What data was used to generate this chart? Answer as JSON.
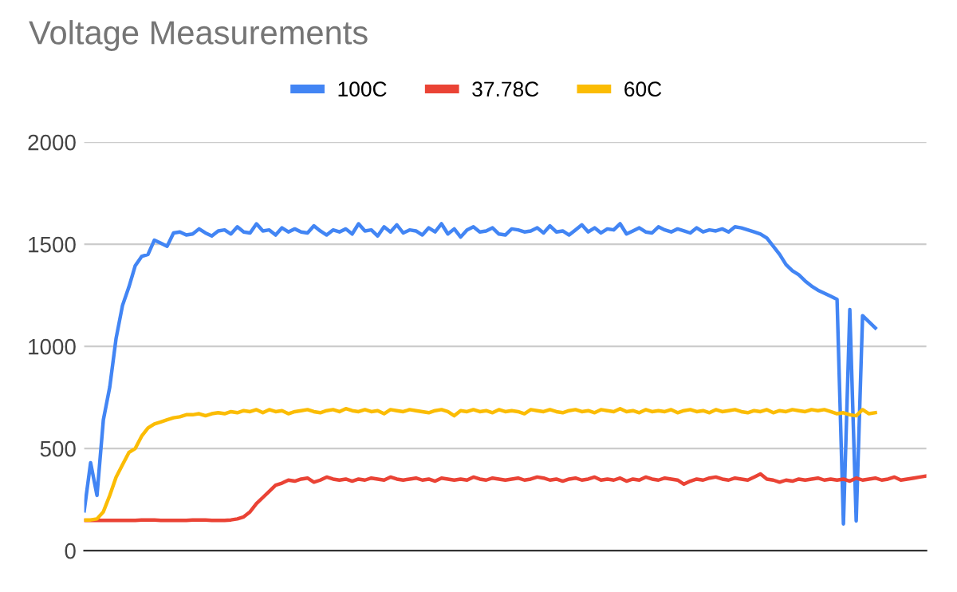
{
  "chart_data": {
    "type": "line",
    "title": "Voltage Measurements",
    "categories": [
      null,
      null,
      null,
      null,
      null,
      null,
      null,
      null,
      null,
      null,
      null,
      null,
      null,
      null,
      null,
      null,
      null,
      null,
      null,
      null,
      null,
      null,
      null,
      null,
      null,
      null,
      null,
      null,
      null,
      null,
      null,
      null,
      null,
      null,
      null,
      null,
      null,
      null,
      null,
      null,
      null,
      null,
      null,
      null,
      null,
      null,
      null,
      null,
      null,
      null,
      null,
      null,
      null,
      null,
      null,
      null,
      null,
      null,
      null,
      null,
      null,
      null,
      null,
      null,
      null,
      null,
      null,
      null,
      null,
      null,
      null,
      null,
      null,
      null,
      null,
      null,
      null,
      null,
      null,
      null,
      null,
      null,
      null,
      null,
      null,
      null,
      null,
      null,
      null,
      null,
      null,
      null,
      null,
      null,
      null,
      null,
      null,
      null,
      null,
      null,
      null,
      null,
      null,
      null,
      null,
      null,
      null,
      null,
      null,
      null,
      null,
      null,
      null,
      null,
      null,
      null,
      null,
      null,
      null,
      null,
      null,
      null,
      null,
      null,
      null,
      null,
      null,
      null,
      null,
      null,
      null,
      null,
      null
    ],
    "series": [
      {
        "name": "100C",
        "color": "#4285f4",
        "values": [
          195,
          430,
          270,
          640,
          800,
          1040,
          1200,
          1290,
          1395,
          1440,
          1450,
          1520,
          1505,
          1490,
          1555,
          1560,
          1545,
          1550,
          1575,
          1555,
          1540,
          1565,
          1570,
          1550,
          1585,
          1560,
          1555,
          1600,
          1565,
          1570,
          1545,
          1580,
          1560,
          1575,
          1560,
          1555,
          1590,
          1565,
          1545,
          1570,
          1560,
          1575,
          1550,
          1600,
          1565,
          1570,
          1540,
          1585,
          1560,
          1595,
          1555,
          1570,
          1565,
          1545,
          1580,
          1560,
          1600,
          1550,
          1575,
          1535,
          1570,
          1585,
          1560,
          1565,
          1580,
          1550,
          1545,
          1575,
          1570,
          1560,
          1565,
          1580,
          1555,
          1590,
          1560,
          1565,
          1545,
          1570,
          1595,
          1560,
          1580,
          1555,
          1575,
          1570,
          1600,
          1550,
          1565,
          1580,
          1560,
          1555,
          1585,
          1570,
          1560,
          1575,
          1565,
          1555,
          1580,
          1560,
          1570,
          1565,
          1575,
          1560,
          1585,
          1580,
          1570,
          1560,
          1550,
          1530,
          1490,
          1450,
          1400,
          1370,
          1350,
          1320,
          1295,
          1275,
          1260,
          1245,
          1230,
          130,
          1180,
          145,
          1150,
          1120,
          1090,
          null,
          null,
          null,
          null,
          null,
          null,
          null,
          null
        ]
      },
      {
        "name": "37.78C",
        "color": "#ea4335",
        "values": [
          148,
          148,
          148,
          148,
          148,
          148,
          148,
          148,
          148,
          150,
          150,
          150,
          148,
          148,
          148,
          148,
          148,
          150,
          150,
          150,
          148,
          148,
          148,
          150,
          155,
          165,
          190,
          230,
          260,
          290,
          320,
          330,
          345,
          340,
          350,
          355,
          335,
          345,
          360,
          350,
          345,
          350,
          340,
          350,
          345,
          355,
          350,
          345,
          360,
          350,
          345,
          350,
          355,
          345,
          350,
          340,
          355,
          350,
          345,
          350,
          345,
          360,
          350,
          345,
          355,
          350,
          345,
          350,
          355,
          345,
          350,
          360,
          355,
          345,
          350,
          340,
          350,
          355,
          345,
          350,
          360,
          345,
          350,
          345,
          355,
          340,
          350,
          345,
          360,
          350,
          345,
          355,
          350,
          345,
          325,
          340,
          350,
          345,
          355,
          360,
          350,
          345,
          355,
          350,
          345,
          360,
          375,
          350,
          345,
          335,
          345,
          340,
          350,
          345,
          350,
          355,
          345,
          350,
          345,
          350,
          340,
          355,
          345,
          350,
          355,
          345,
          350,
          360,
          345,
          350,
          355,
          360,
          365
        ]
      },
      {
        "name": "60C",
        "color": "#fbbc04",
        "values": [
          150,
          150,
          155,
          190,
          270,
          360,
          420,
          480,
          500,
          560,
          600,
          620,
          630,
          640,
          650,
          655,
          665,
          665,
          670,
          660,
          670,
          675,
          670,
          680,
          675,
          685,
          680,
          690,
          675,
          690,
          680,
          685,
          670,
          680,
          685,
          690,
          680,
          675,
          685,
          690,
          680,
          695,
          685,
          680,
          690,
          680,
          685,
          670,
          690,
          685,
          680,
          690,
          685,
          680,
          675,
          685,
          690,
          680,
          660,
          685,
          680,
          690,
          680,
          685,
          675,
          690,
          680,
          685,
          680,
          670,
          690,
          685,
          680,
          690,
          680,
          675,
          685,
          690,
          680,
          685,
          675,
          690,
          685,
          680,
          695,
          680,
          685,
          675,
          690,
          680,
          685,
          680,
          690,
          675,
          685,
          690,
          680,
          685,
          675,
          690,
          680,
          685,
          690,
          680,
          675,
          685,
          680,
          690,
          675,
          685,
          680,
          690,
          685,
          680,
          690,
          685,
          690,
          680,
          670,
          675,
          665,
          660,
          690,
          670,
          675,
          null,
          null,
          null,
          null,
          null,
          null,
          null,
          null
        ]
      }
    ],
    "ylim": [
      0,
      2000
    ],
    "yticks": [
      0,
      500,
      1000,
      1500,
      2000
    ],
    "grid": "y",
    "legend": "top",
    "tick_labels": "y"
  }
}
